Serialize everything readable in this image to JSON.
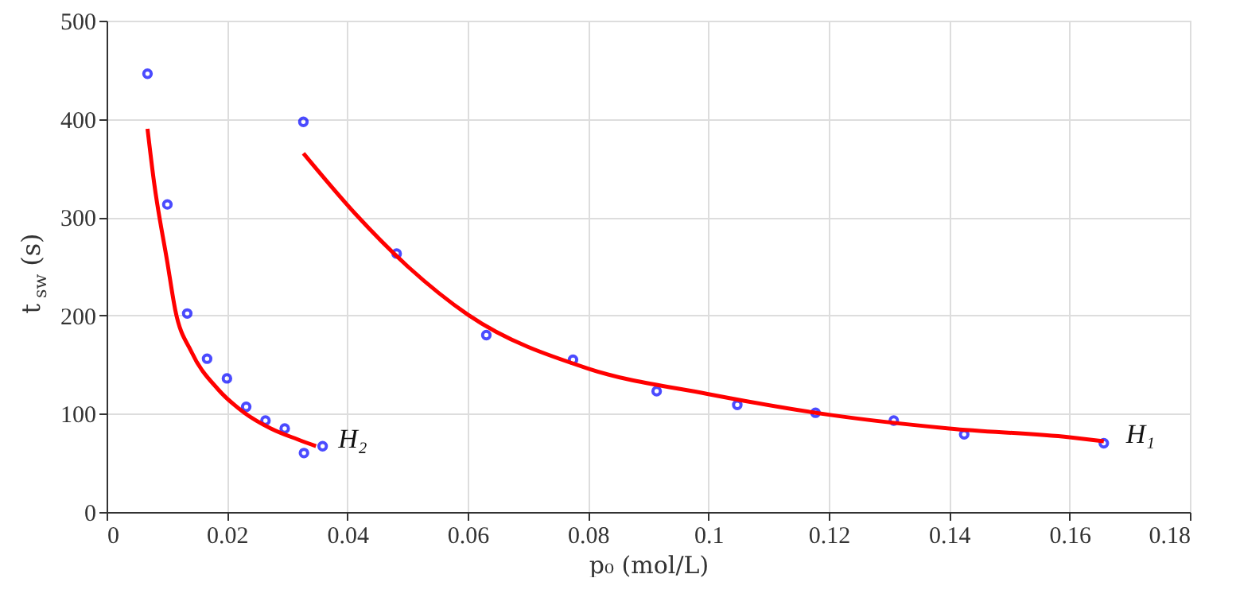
{
  "chart_data": {
    "type": "scatter",
    "xlabel": "p₀ (mol/L)",
    "ylabel": "t$_{sw}$ (s)",
    "xlim": [
      0,
      0.18
    ],
    "xticks": [
      0,
      0.02,
      0.04,
      0.06,
      0.08,
      0.1,
      0.12,
      0.14,
      0.16,
      0.18
    ],
    "ylim": [
      0,
      500
    ],
    "yticks": [
      0,
      100,
      200,
      300,
      400,
      500
    ],
    "grid": true,
    "series": [
      {
        "marker": "circle",
        "color": "#0000ff",
        "x": [
          0.0068,
          0.0101,
          0.0134,
          0.0167,
          0.02,
          0.0232,
          0.0264,
          0.0296,
          0.0328,
          0.0359
        ],
        "values": [
          446,
          313,
          202,
          156,
          136,
          107,
          93,
          85,
          60,
          67
        ]
      },
      {
        "marker": "circle",
        "color": "#0000ff",
        "x": [
          0.0327,
          0.0482,
          0.0631,
          0.0775,
          0.0914,
          0.1048,
          0.1178,
          0.1308,
          0.1425,
          0.1657
        ],
        "values": [
          397,
          263,
          180,
          155,
          123,
          109,
          101,
          93,
          79,
          70
        ]
      },
      {
        "type": "line",
        "marker": "none",
        "line_style": "solid",
        "color": "#ff0000",
        "x": [
          0.0068,
          0.0079,
          0.0101,
          0.0114,
          0.0141,
          0.0185,
          0.0229,
          0.0273,
          0.0317,
          0.0348
        ],
        "values": [
          390,
          335,
          254,
          206,
          163,
          125,
          101,
          85,
          74,
          67
        ]
      },
      {
        "type": "line",
        "marker": "none",
        "line_style": "solid",
        "color": "#ff0000",
        "x": [
          0.0327,
          0.0414,
          0.0502,
          0.06,
          0.08,
          0.1,
          0.12,
          0.14,
          0.16,
          0.1657
        ],
        "values": [
          365,
          303,
          249,
          201,
          146,
          120,
          99,
          85,
          76,
          72
        ]
      }
    ],
    "annotations": [
      "H₂",
      "H₁"
    ]
  }
}
